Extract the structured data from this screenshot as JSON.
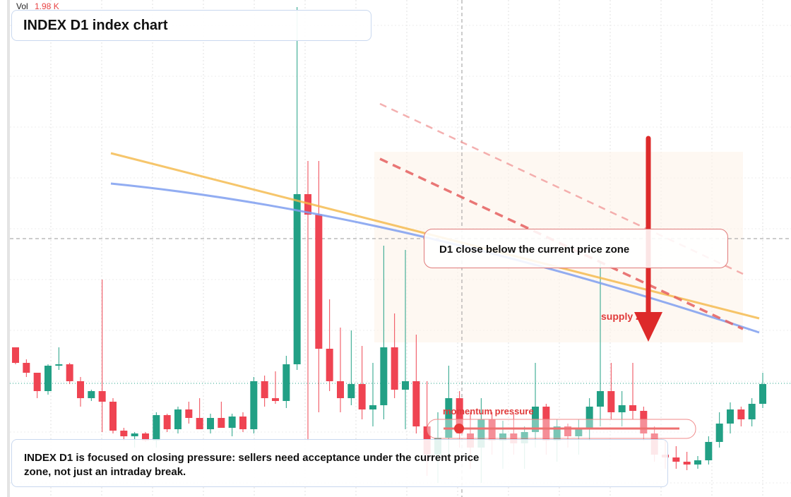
{
  "header": {
    "volume_label": "Vol",
    "volume_value": "1.98 K",
    "title": "INDEX D1 index chart"
  },
  "chart_data": {
    "type": "candlestick",
    "ylim": [
      0,
      704
    ],
    "up_color": "#22a085",
    "down_color": "#ef4452",
    "open": [
      212,
      190,
      176,
      150,
      186,
      188,
      164,
      140,
      150,
      135,
      94,
      86,
      90,
      80,
      116,
      96,
      124,
      112,
      96,
      112,
      98,
      114,
      96,
      164,
      140,
      136,
      188,
      429,
      400,
      210,
      164,
      140,
      160,
      124,
      130,
      212,
      152,
      164,
      100,
      60,
      84,
      140,
      90,
      70,
      110,
      80,
      90,
      76,
      92,
      128,
      80,
      100,
      86,
      96,
      128,
      150,
      120,
      130,
      122,
      90,
      60,
      56,
      50,
      46,
      52,
      78,
      104,
      124,
      110,
      132
    ],
    "high": [
      212,
      195,
      176,
      188,
      212,
      190,
      170,
      152,
      308,
      140,
      98,
      92,
      92,
      120,
      118,
      128,
      135,
      140,
      118,
      135,
      118,
      120,
      170,
      172,
      178,
      200,
      694,
      476,
      476,
      280,
      240,
      236,
      214,
      190,
      356,
      260,
      350,
      230,
      164,
      120,
      186,
      150,
      120,
      140,
      120,
      108,
      118,
      100,
      190,
      132,
      110,
      104,
      110,
      140,
      334,
      190,
      150,
      190,
      128,
      100,
      80,
      72,
      64,
      58,
      86,
      120,
      134,
      128,
      140,
      176
    ],
    "low": [
      188,
      170,
      140,
      145,
      180,
      160,
      128,
      136,
      92,
      90,
      80,
      70,
      78,
      70,
      92,
      90,
      104,
      98,
      90,
      104,
      86,
      92,
      90,
      128,
      132,
      126,
      180,
      80,
      120,
      150,
      120,
      130,
      110,
      100,
      110,
      140,
      96,
      90,
      30,
      20,
      60,
      70,
      40,
      20,
      60,
      40,
      60,
      40,
      70,
      60,
      50,
      70,
      60,
      80,
      100,
      110,
      100,
      110,
      80,
      50,
      40,
      40,
      38,
      40,
      46,
      70,
      90,
      100,
      100,
      126
    ],
    "close": [
      190,
      176,
      150,
      186,
      188,
      164,
      140,
      150,
      135,
      94,
      86,
      90,
      80,
      116,
      96,
      124,
      112,
      96,
      112,
      98,
      114,
      96,
      164,
      140,
      136,
      188,
      429,
      400,
      210,
      164,
      140,
      160,
      124,
      130,
      212,
      152,
      164,
      100,
      60,
      84,
      140,
      90,
      70,
      110,
      80,
      90,
      76,
      92,
      128,
      80,
      100,
      86,
      96,
      128,
      150,
      120,
      130,
      122,
      90,
      60,
      56,
      50,
      46,
      52,
      78,
      104,
      124,
      110,
      132,
      160
    ]
  },
  "annotations": {
    "callout": "D1 close below the current price zone",
    "zone_label": "supply zone",
    "momentum_label": "momentum pressure",
    "note": "INDEX D1 is focused on closing pressure: sellers need acceptance under the current price zone, not just an intraday break."
  }
}
